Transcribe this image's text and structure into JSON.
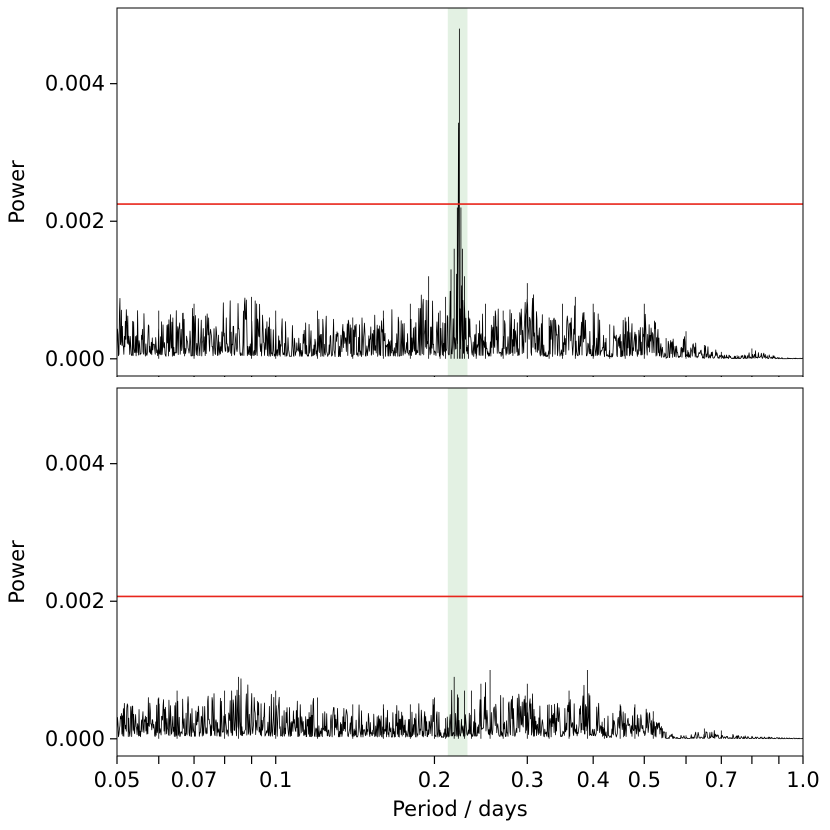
{
  "chart_data": [
    {
      "type": "line",
      "panel": "top",
      "xlabel": "",
      "ylabel": "Power",
      "xscale": "log",
      "xlim": [
        0.05,
        1.0
      ],
      "ylim": [
        -0.00025,
        0.0051
      ],
      "yticks": [
        0.0,
        0.002,
        0.004
      ],
      "ytick_labels": [
        "0.000",
        "0.002",
        "0.004"
      ],
      "threshold": {
        "value": 0.00225,
        "color": "#e8261c"
      },
      "highlight_band": {
        "xmin": 0.212,
        "xmax": 0.231,
        "color": "#d9ecd9"
      },
      "series": [
        {
          "color": "#000000",
          "x": [
            0.05,
            0.06,
            0.07,
            0.09,
            0.1,
            0.12,
            0.14,
            0.16,
            0.18,
            0.195,
            0.205,
            0.21,
            0.215,
            0.218,
            0.221,
            0.223,
            0.2245,
            0.226,
            0.228,
            0.232,
            0.24,
            0.25,
            0.27,
            0.3,
            0.33,
            0.35,
            0.37,
            0.4,
            0.43,
            0.46,
            0.5,
            0.55,
            0.6,
            0.65,
            0.7,
            0.75,
            0.8,
            0.9,
            1.0
          ],
          "y": [
            0.0009,
            0.0007,
            0.0008,
            0.0009,
            0.0007,
            0.0007,
            0.0006,
            0.0007,
            0.0008,
            0.0012,
            0.0007,
            0.0009,
            0.0013,
            0.0016,
            0.0022,
            0.0048,
            0.0022,
            0.0016,
            0.0012,
            0.0007,
            0.0005,
            0.0008,
            0.0007,
            0.0011,
            0.0006,
            0.0008,
            0.0009,
            0.0008,
            0.0005,
            0.0006,
            0.0008,
            0.0003,
            0.0004,
            0.0002,
            0.0001,
            5e-05,
            0.00015,
            2e-05,
            1e-05
          ]
        }
      ]
    },
    {
      "type": "line",
      "panel": "bottom",
      "xlabel": "Period / days",
      "ylabel": "Power",
      "xscale": "log",
      "xlim": [
        0.05,
        1.0
      ],
      "ylim": [
        -0.00025,
        0.0051
      ],
      "yticks": [
        0.0,
        0.002,
        0.004
      ],
      "ytick_labels": [
        "0.000",
        "0.002",
        "0.004"
      ],
      "xticks": [
        0.05,
        0.07,
        0.1,
        0.2,
        0.3,
        0.4,
        0.5,
        0.7,
        1.0
      ],
      "xtick_labels": [
        "0.05",
        "0.07",
        "0.1",
        "0.2",
        "0.3",
        "0.4",
        "0.5",
        "0.7",
        "1.0"
      ],
      "threshold": {
        "value": 0.00207,
        "color": "#e8261c"
      },
      "highlight_band": {
        "xmin": 0.212,
        "xmax": 0.231,
        "color": "#d9ecd9"
      },
      "series": [
        {
          "color": "#000000",
          "x": [
            0.05,
            0.06,
            0.065,
            0.08,
            0.085,
            0.1,
            0.12,
            0.14,
            0.16,
            0.18,
            0.2,
            0.21,
            0.218,
            0.222,
            0.228,
            0.235,
            0.245,
            0.255,
            0.27,
            0.3,
            0.33,
            0.36,
            0.39,
            0.42,
            0.45,
            0.48,
            0.52,
            0.55,
            0.6,
            0.65,
            0.7,
            0.75,
            0.8,
            0.9,
            1.0
          ],
          "y": [
            0.0006,
            0.0006,
            0.0007,
            0.0007,
            0.0009,
            0.0007,
            0.0006,
            0.0005,
            0.0005,
            0.0005,
            0.0006,
            0.0003,
            0.0009,
            0.0006,
            0.0007,
            0.0007,
            0.0008,
            0.001,
            0.0006,
            0.0008,
            0.0005,
            0.0007,
            0.001,
            0.0003,
            0.0005,
            0.0005,
            0.0004,
            0.0001,
            5e-05,
            0.00015,
            0.00012,
            5e-05,
            4e-05,
            2e-05,
            1e-05
          ]
        }
      ]
    }
  ],
  "x_minor_ticks": [
    0.06,
    0.08,
    0.09,
    0.6,
    0.8,
    0.9
  ]
}
